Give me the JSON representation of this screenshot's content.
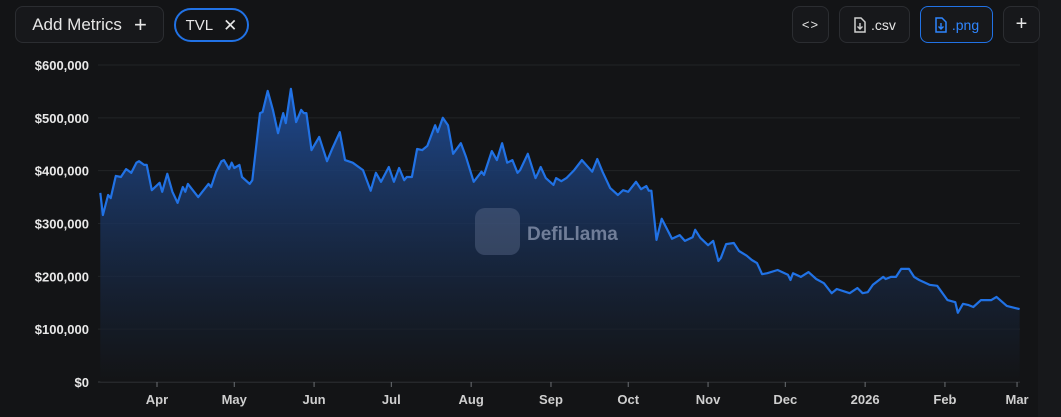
{
  "toolbar": {
    "add_metrics_label": "Add Metrics",
    "add_icon": "plus-icon",
    "metric_chip": "TVL",
    "remove_icon": "close-icon",
    "embed_icon": "code-icon",
    "csv_label": ".csv",
    "png_label": ".png",
    "download_icon": "file-download-icon",
    "more_icon": "plus-icon"
  },
  "watermark": "DefiLlama",
  "colors": {
    "line": "#2172e5",
    "accent": "#2172e5",
    "background": "#131416"
  },
  "chart_data": {
    "type": "area",
    "title": "",
    "xlabel": "",
    "ylabel": "",
    "ylim": [
      0,
      600000
    ],
    "grid": true,
    "legend": "none",
    "y_ticks": [
      "$0",
      "$100,000",
      "$200,000",
      "$300,000",
      "$400,000",
      "$500,000",
      "$600,000"
    ],
    "y_tick_values": [
      0,
      100000,
      200000,
      300000,
      400000,
      500000,
      600000
    ],
    "x_ticks": [
      {
        "label": "Apr",
        "date": "2025-04-01"
      },
      {
        "label": "May",
        "date": "2025-05-01"
      },
      {
        "label": "Jun",
        "date": "2025-06-01"
      },
      {
        "label": "Jul",
        "date": "2025-07-01"
      },
      {
        "label": "Aug",
        "date": "2025-08-01"
      },
      {
        "label": "Sep",
        "date": "2025-09-01"
      },
      {
        "label": "Oct",
        "date": "2025-10-01"
      },
      {
        "label": "Nov",
        "date": "2025-11-01"
      },
      {
        "label": "Dec",
        "date": "2025-12-01"
      },
      {
        "label": "2026",
        "date": "2026-01-01",
        "bold": true
      },
      {
        "label": "Feb",
        "date": "2026-02-01"
      },
      {
        "label": "Mar",
        "date": "2026-03-01"
      }
    ],
    "series": [
      {
        "points": [
          [
            "2025-03-10",
            358000
          ],
          [
            "2025-03-11",
            316000
          ],
          [
            "2025-03-13",
            354000
          ],
          [
            "2025-03-14",
            348000
          ],
          [
            "2025-03-16",
            390000
          ],
          [
            "2025-03-18",
            388000
          ],
          [
            "2025-03-20",
            403000
          ],
          [
            "2025-03-22",
            396000
          ],
          [
            "2025-03-24",
            415000
          ],
          [
            "2025-03-25",
            418000
          ],
          [
            "2025-03-27",
            411000
          ],
          [
            "2025-03-28",
            411000
          ],
          [
            "2025-03-30",
            363000
          ],
          [
            "2025-04-02",
            377000
          ],
          [
            "2025-04-03",
            360000
          ],
          [
            "2025-04-05",
            394000
          ],
          [
            "2025-04-07",
            360000
          ],
          [
            "2025-04-09",
            339000
          ],
          [
            "2025-04-11",
            369000
          ],
          [
            "2025-04-12",
            360000
          ],
          [
            "2025-04-13",
            375000
          ],
          [
            "2025-04-17",
            350000
          ],
          [
            "2025-04-21",
            375000
          ],
          [
            "2025-04-22",
            369000
          ],
          [
            "2025-04-24",
            398000
          ],
          [
            "2025-04-26",
            418000
          ],
          [
            "2025-04-27",
            420000
          ],
          [
            "2025-04-29",
            403000
          ],
          [
            "2025-04-30",
            415000
          ],
          [
            "2025-05-01",
            405000
          ],
          [
            "2025-05-03",
            411000
          ],
          [
            "2025-05-04",
            388000
          ],
          [
            "2025-05-07",
            375000
          ],
          [
            "2025-05-08",
            382000
          ],
          [
            "2025-05-11",
            509000
          ],
          [
            "2025-05-12",
            511000
          ],
          [
            "2025-05-14",
            551000
          ],
          [
            "2025-05-16",
            515000
          ],
          [
            "2025-05-18",
            471000
          ],
          [
            "2025-05-20",
            509000
          ],
          [
            "2025-05-21",
            490000
          ],
          [
            "2025-05-23",
            555000
          ],
          [
            "2025-05-25",
            492000
          ],
          [
            "2025-05-27",
            515000
          ],
          [
            "2025-05-28",
            509000
          ],
          [
            "2025-05-29",
            509000
          ],
          [
            "2025-05-31",
            439000
          ],
          [
            "2025-06-03",
            464000
          ],
          [
            "2025-06-06",
            418000
          ],
          [
            "2025-06-08",
            441000
          ],
          [
            "2025-06-11",
            473000
          ],
          [
            "2025-06-13",
            420000
          ],
          [
            "2025-06-16",
            415000
          ],
          [
            "2025-06-20",
            401000
          ],
          [
            "2025-06-23",
            362000
          ],
          [
            "2025-06-25",
            396000
          ],
          [
            "2025-06-27",
            379000
          ],
          [
            "2025-06-30",
            407000
          ],
          [
            "2025-07-02",
            379000
          ],
          [
            "2025-07-04",
            405000
          ],
          [
            "2025-07-06",
            382000
          ],
          [
            "2025-07-07",
            388000
          ],
          [
            "2025-07-09",
            388000
          ],
          [
            "2025-07-11",
            441000
          ],
          [
            "2025-07-13",
            439000
          ],
          [
            "2025-07-15",
            447000
          ],
          [
            "2025-07-18",
            486000
          ],
          [
            "2025-07-19",
            473000
          ],
          [
            "2025-07-21",
            500000
          ],
          [
            "2025-07-23",
            486000
          ],
          [
            "2025-07-25",
            432000
          ],
          [
            "2025-07-28",
            452000
          ],
          [
            "2025-07-30",
            426000
          ],
          [
            "2025-08-02",
            379000
          ],
          [
            "2025-08-05",
            398000
          ],
          [
            "2025-08-06",
            392000
          ],
          [
            "2025-08-09",
            437000
          ],
          [
            "2025-08-11",
            420000
          ],
          [
            "2025-08-13",
            452000
          ],
          [
            "2025-08-15",
            415000
          ],
          [
            "2025-08-17",
            420000
          ],
          [
            "2025-08-19",
            396000
          ],
          [
            "2025-08-20",
            401000
          ],
          [
            "2025-08-23",
            432000
          ],
          [
            "2025-08-26",
            386000
          ],
          [
            "2025-08-27",
            396000
          ],
          [
            "2025-08-28",
            407000
          ],
          [
            "2025-08-30",
            386000
          ],
          [
            "2025-09-02",
            373000
          ],
          [
            "2025-09-03",
            386000
          ],
          [
            "2025-09-05",
            380000
          ],
          [
            "2025-09-07",
            386000
          ],
          [
            "2025-09-10",
            401000
          ],
          [
            "2025-09-13",
            420000
          ],
          [
            "2025-09-17",
            398000
          ],
          [
            "2025-09-19",
            422000
          ],
          [
            "2025-09-21",
            398000
          ],
          [
            "2025-09-24",
            367000
          ],
          [
            "2025-09-27",
            354000
          ],
          [
            "2025-09-29",
            363000
          ],
          [
            "2025-10-01",
            360000
          ],
          [
            "2025-10-04",
            379000
          ],
          [
            "2025-10-06",
            365000
          ],
          [
            "2025-10-08",
            371000
          ],
          [
            "2025-10-09",
            362000
          ],
          [
            "2025-10-10",
            362000
          ],
          [
            "2025-10-12",
            269000
          ],
          [
            "2025-10-14",
            309000
          ],
          [
            "2025-10-18",
            271000
          ],
          [
            "2025-10-21",
            278000
          ],
          [
            "2025-10-23",
            267000
          ],
          [
            "2025-10-26",
            274000
          ],
          [
            "2025-10-27",
            288000
          ],
          [
            "2025-10-29",
            273000
          ],
          [
            "2025-11-01",
            259000
          ],
          [
            "2025-11-03",
            267000
          ],
          [
            "2025-11-05",
            229000
          ],
          [
            "2025-11-06",
            235000
          ],
          [
            "2025-11-08",
            261000
          ],
          [
            "2025-11-11",
            263000
          ],
          [
            "2025-11-13",
            248000
          ],
          [
            "2025-11-16",
            239000
          ],
          [
            "2025-11-18",
            231000
          ],
          [
            "2025-11-20",
            225000
          ],
          [
            "2025-11-22",
            204000
          ],
          [
            "2025-11-24",
            206000
          ],
          [
            "2025-11-28",
            212000
          ],
          [
            "2025-12-02",
            203000
          ],
          [
            "2025-12-03",
            193000
          ],
          [
            "2025-12-04",
            206000
          ],
          [
            "2025-12-07",
            199000
          ],
          [
            "2025-12-10",
            208000
          ],
          [
            "2025-12-13",
            195000
          ],
          [
            "2025-12-16",
            187000
          ],
          [
            "2025-12-19",
            168000
          ],
          [
            "2025-12-21",
            176000
          ],
          [
            "2025-12-26",
            168000
          ],
          [
            "2025-12-29",
            178000
          ],
          [
            "2025-12-31",
            168000
          ],
          [
            "2026-01-02",
            170000
          ],
          [
            "2026-01-04",
            184000
          ],
          [
            "2026-01-08",
            199000
          ],
          [
            "2026-01-09",
            195000
          ],
          [
            "2026-01-11",
            199000
          ],
          [
            "2026-01-13",
            199000
          ],
          [
            "2026-01-15",
            214000
          ],
          [
            "2026-01-18",
            214000
          ],
          [
            "2026-01-20",
            199000
          ],
          [
            "2026-01-22",
            193000
          ],
          [
            "2026-01-26",
            184000
          ],
          [
            "2026-01-29",
            182000
          ],
          [
            "2026-02-02",
            155000
          ],
          [
            "2026-02-05",
            151000
          ],
          [
            "2026-02-06",
            131000
          ],
          [
            "2026-02-08",
            148000
          ],
          [
            "2026-02-10",
            146000
          ],
          [
            "2026-02-12",
            142000
          ],
          [
            "2026-02-15",
            155000
          ],
          [
            "2026-02-19",
            155000
          ],
          [
            "2026-02-21",
            161000
          ],
          [
            "2026-02-25",
            144000
          ],
          [
            "2026-03-02",
            138000
          ]
        ]
      }
    ]
  }
}
